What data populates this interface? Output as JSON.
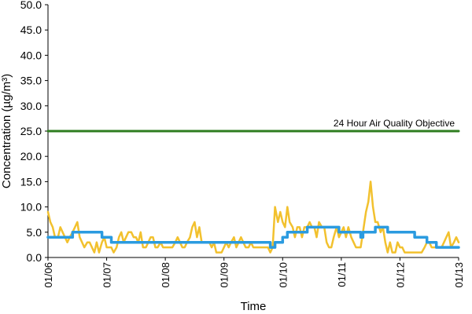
{
  "chart_data": {
    "type": "line",
    "title": "",
    "xlabel": "Time",
    "ylabel": "Concentration (µg/m³)",
    "ylim": [
      0,
      50
    ],
    "y_ticks": [
      "0.0",
      "5.0",
      "10.0",
      "15.0",
      "20.0",
      "25.0",
      "30.0",
      "35.0",
      "40.0",
      "45.0",
      "50.0"
    ],
    "x_ticks": [
      "01/06",
      "01/07",
      "01/08",
      "01/09",
      "01/10",
      "01/11",
      "01/12",
      "01/13"
    ],
    "x_unit": "days",
    "xlim": [
      0,
      7
    ],
    "grid": false,
    "legend": "none",
    "annotations": [
      {
        "text": "24 Hour Air Quality Objective",
        "y": 25
      }
    ],
    "series": [
      {
        "color": "#2e7d1f",
        "values": [
          [
            0,
            25
          ],
          [
            7,
            25
          ]
        ]
      },
      {
        "color": "#f2c12e",
        "values": [
          [
            0.0,
            9.0
          ],
          [
            0.04,
            7.0
          ],
          [
            0.08,
            6.0
          ],
          [
            0.12,
            4.0
          ],
          [
            0.17,
            4.0
          ],
          [
            0.21,
            6.0
          ],
          [
            0.25,
            5.0
          ],
          [
            0.29,
            4.0
          ],
          [
            0.33,
            3.0
          ],
          [
            0.37,
            4.0
          ],
          [
            0.42,
            5.0
          ],
          [
            0.46,
            6.0
          ],
          [
            0.5,
            7.0
          ],
          [
            0.54,
            4.0
          ],
          [
            0.58,
            3.0
          ],
          [
            0.62,
            2.0
          ],
          [
            0.67,
            3.0
          ],
          [
            0.71,
            3.0
          ],
          [
            0.75,
            2.0
          ],
          [
            0.79,
            1.0
          ],
          [
            0.83,
            3.0
          ],
          [
            0.87,
            1.0
          ],
          [
            0.92,
            3.0
          ],
          [
            0.96,
            4.0
          ],
          [
            1.0,
            2.0
          ],
          [
            1.04,
            2.0
          ],
          [
            1.08,
            2.0
          ],
          [
            1.12,
            1.0
          ],
          [
            1.17,
            2.0
          ],
          [
            1.21,
            4.0
          ],
          [
            1.25,
            5.0
          ],
          [
            1.29,
            3.0
          ],
          [
            1.33,
            4.0
          ],
          [
            1.37,
            5.0
          ],
          [
            1.42,
            5.0
          ],
          [
            1.46,
            4.0
          ],
          [
            1.5,
            4.0
          ],
          [
            1.54,
            3.0
          ],
          [
            1.58,
            5.0
          ],
          [
            1.62,
            2.0
          ],
          [
            1.67,
            2.0
          ],
          [
            1.71,
            3.0
          ],
          [
            1.75,
            4.0
          ],
          [
            1.79,
            4.0
          ],
          [
            1.83,
            2.0
          ],
          [
            1.87,
            2.0
          ],
          [
            1.92,
            3.0
          ],
          [
            1.96,
            2.0
          ],
          [
            2.0,
            2.0
          ],
          [
            2.04,
            2.0
          ],
          [
            2.08,
            2.0
          ],
          [
            2.12,
            2.0
          ],
          [
            2.17,
            3.0
          ],
          [
            2.21,
            4.0
          ],
          [
            2.25,
            3.0
          ],
          [
            2.29,
            2.0
          ],
          [
            2.33,
            2.0
          ],
          [
            2.37,
            3.0
          ],
          [
            2.42,
            4.0
          ],
          [
            2.46,
            6.0
          ],
          [
            2.5,
            7.0
          ],
          [
            2.54,
            4.0
          ],
          [
            2.58,
            6.0
          ],
          [
            2.62,
            3.0
          ],
          [
            2.67,
            3.0
          ],
          [
            2.71,
            3.0
          ],
          [
            2.75,
            3.0
          ],
          [
            2.79,
            2.0
          ],
          [
            2.83,
            3.0
          ],
          [
            2.87,
            1.0
          ],
          [
            2.92,
            1.0
          ],
          [
            2.96,
            1.0
          ],
          [
            3.0,
            2.0
          ],
          [
            3.04,
            3.0
          ],
          [
            3.08,
            2.0
          ],
          [
            3.12,
            3.0
          ],
          [
            3.17,
            4.0
          ],
          [
            3.21,
            2.0
          ],
          [
            3.25,
            3.0
          ],
          [
            3.29,
            4.0
          ],
          [
            3.33,
            3.0
          ],
          [
            3.37,
            2.0
          ],
          [
            3.42,
            2.0
          ],
          [
            3.46,
            3.0
          ],
          [
            3.5,
            2.0
          ],
          [
            3.54,
            2.0
          ],
          [
            3.58,
            2.0
          ],
          [
            3.62,
            2.0
          ],
          [
            3.67,
            2.0
          ],
          [
            3.71,
            2.0
          ],
          [
            3.75,
            2.0
          ],
          [
            3.79,
            1.0
          ],
          [
            3.83,
            2.0
          ],
          [
            3.87,
            10.0
          ],
          [
            3.92,
            7.0
          ],
          [
            3.96,
            9.0
          ],
          [
            4.0,
            7.0
          ],
          [
            4.04,
            6.0
          ],
          [
            4.08,
            10.0
          ],
          [
            4.12,
            7.0
          ],
          [
            4.17,
            6.0
          ],
          [
            4.21,
            4.0
          ],
          [
            4.25,
            6.0
          ],
          [
            4.29,
            6.0
          ],
          [
            4.33,
            4.0
          ],
          [
            4.37,
            6.0
          ],
          [
            4.42,
            6.0
          ],
          [
            4.46,
            7.0
          ],
          [
            4.5,
            6.0
          ],
          [
            4.54,
            6.0
          ],
          [
            4.58,
            4.0
          ],
          [
            4.62,
            7.0
          ],
          [
            4.67,
            6.0
          ],
          [
            4.71,
            6.0
          ],
          [
            4.75,
            3.0
          ],
          [
            4.79,
            2.0
          ],
          [
            4.83,
            2.0
          ],
          [
            4.87,
            4.0
          ],
          [
            4.92,
            6.0
          ],
          [
            4.96,
            4.0
          ],
          [
            5.0,
            5.0
          ],
          [
            5.04,
            6.0
          ],
          [
            5.08,
            4.0
          ],
          [
            5.12,
            6.0
          ],
          [
            5.17,
            4.0
          ],
          [
            5.21,
            3.0
          ],
          [
            5.25,
            2.0
          ],
          [
            5.29,
            2.0
          ],
          [
            5.33,
            2.0
          ],
          [
            5.37,
            5.0
          ],
          [
            5.42,
            9.0
          ],
          [
            5.46,
            11.0
          ],
          [
            5.5,
            15.0
          ],
          [
            5.54,
            10.0
          ],
          [
            5.58,
            7.0
          ],
          [
            5.62,
            7.0
          ],
          [
            5.67,
            5.0
          ],
          [
            5.71,
            6.0
          ],
          [
            5.75,
            3.0
          ],
          [
            5.79,
            1.0
          ],
          [
            5.83,
            3.0
          ],
          [
            5.87,
            1.0
          ],
          [
            5.92,
            1.0
          ],
          [
            5.96,
            3.0
          ],
          [
            6.0,
            2.0
          ],
          [
            6.04,
            2.0
          ],
          [
            6.08,
            1.0
          ],
          [
            6.12,
            1.0
          ],
          [
            6.17,
            1.0
          ],
          [
            6.21,
            1.0
          ],
          [
            6.25,
            1.0
          ],
          [
            6.29,
            1.0
          ],
          [
            6.33,
            1.0
          ],
          [
            6.37,
            1.0
          ],
          [
            6.42,
            2.0
          ],
          [
            6.46,
            3.0
          ],
          [
            6.5,
            3.0
          ],
          [
            6.54,
            2.0
          ],
          [
            6.58,
            2.0
          ],
          [
            6.62,
            2.0
          ],
          [
            6.67,
            2.0
          ],
          [
            6.71,
            2.0
          ],
          [
            6.75,
            3.0
          ],
          [
            6.79,
            4.0
          ],
          [
            6.83,
            5.0
          ],
          [
            6.87,
            2.0
          ],
          [
            6.92,
            3.0
          ],
          [
            6.96,
            4.0
          ],
          [
            7.0,
            3.0
          ]
        ]
      },
      {
        "color": "#2b9be0",
        "values": [
          [
            0.0,
            4.0
          ],
          [
            0.42,
            4.0
          ],
          [
            0.42,
            5.0
          ],
          [
            0.92,
            5.0
          ],
          [
            0.92,
            4.0
          ],
          [
            1.08,
            4.0
          ],
          [
            1.08,
            3.0
          ],
          [
            3.79,
            3.0
          ],
          [
            3.79,
            2.0
          ],
          [
            3.87,
            2.0
          ],
          [
            3.87,
            3.0
          ],
          [
            4.0,
            3.0
          ],
          [
            4.0,
            4.0
          ],
          [
            4.08,
            4.0
          ],
          [
            4.08,
            5.0
          ],
          [
            4.42,
            5.0
          ],
          [
            4.42,
            6.0
          ],
          [
            4.96,
            6.0
          ],
          [
            4.96,
            5.0
          ],
          [
            5.33,
            5.0
          ],
          [
            5.33,
            4.0
          ],
          [
            5.37,
            4.0
          ],
          [
            5.37,
            5.0
          ],
          [
            5.58,
            5.0
          ],
          [
            5.58,
            6.0
          ],
          [
            5.79,
            6.0
          ],
          [
            5.79,
            5.0
          ],
          [
            6.25,
            5.0
          ],
          [
            6.25,
            4.0
          ],
          [
            6.46,
            4.0
          ],
          [
            6.46,
            3.0
          ],
          [
            6.62,
            3.0
          ],
          [
            6.62,
            2.0
          ],
          [
            7.0,
            2.0
          ]
        ]
      }
    ]
  }
}
